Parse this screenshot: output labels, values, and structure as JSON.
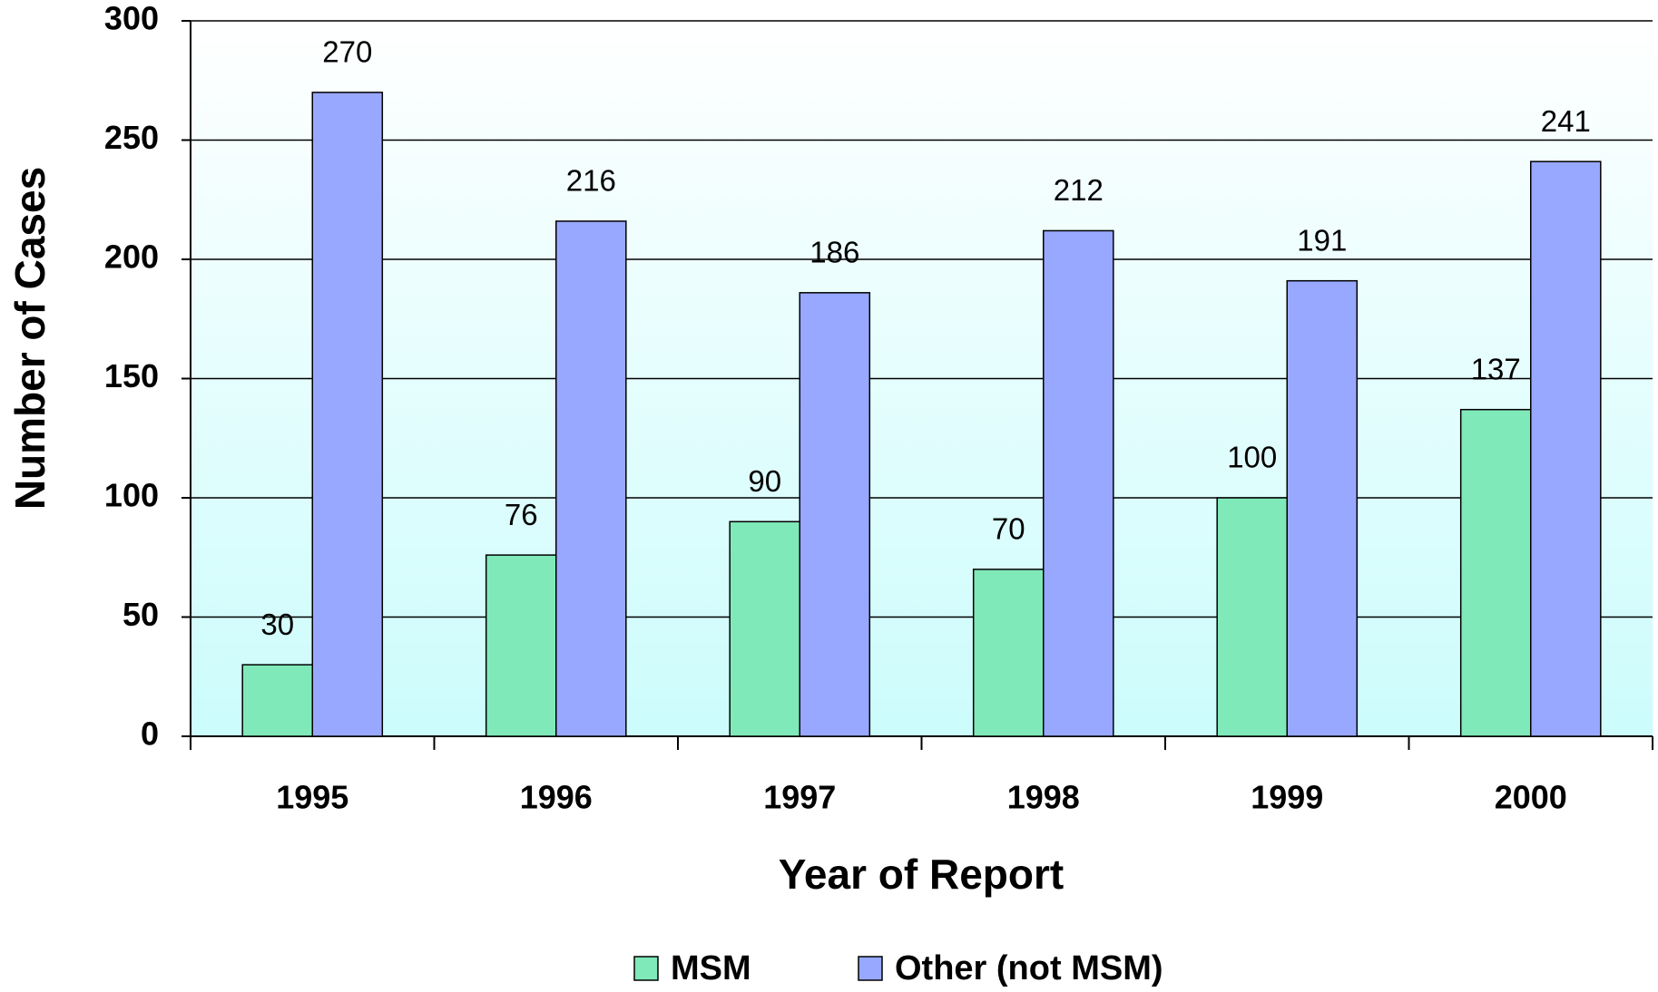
{
  "chart_data": {
    "type": "bar",
    "x_label": "Year of Report",
    "y_label": "Number of Cases",
    "categories": [
      "1995",
      "1996",
      "1997",
      "1998",
      "1999",
      "2000"
    ],
    "series": [
      {
        "name": "MSM",
        "color": "#80e9b9",
        "values": [
          30,
          76,
          90,
          70,
          100,
          137
        ]
      },
      {
        "name": "Other (not MSM)",
        "color": "#98a8fe",
        "values": [
          270,
          216,
          186,
          212,
          191,
          241
        ]
      }
    ],
    "ylim": [
      0,
      300
    ],
    "yticks": [
      0,
      50,
      100,
      150,
      200,
      250,
      300
    ],
    "grid": true,
    "legend": "bottom"
  }
}
